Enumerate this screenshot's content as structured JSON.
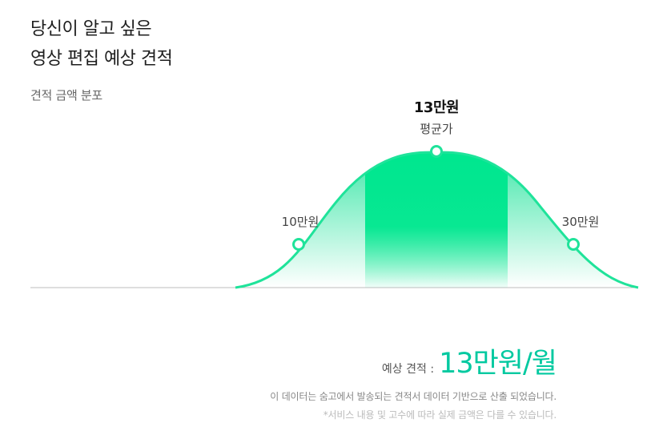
{
  "headline": {
    "line1": "당신이 알고 싶은",
    "line2": "영상 편집 예상 견적"
  },
  "subtitle": "견적 금액 분포",
  "chart_data": {
    "type": "area",
    "title": "견적 금액 분포",
    "average": {
      "value": "13만원",
      "label": "평균가"
    },
    "low": {
      "value": "10만원"
    },
    "high": {
      "value": "30만원"
    },
    "colors": {
      "curve": "#1fe39a",
      "highlight": "#00e78f",
      "accent": "#00c9a0",
      "baseline": "#bdbdbd"
    }
  },
  "estimate": {
    "label": "예상 견적 :",
    "value": "13만원/월"
  },
  "notes": [
    "이 데이터는 숨고에서 발송되는 견적서 데이터 기반으로 산출 되었습니다.",
    "*서비스 내용 및 고수에 따라 실제 금액은 다를 수 있습니다."
  ]
}
